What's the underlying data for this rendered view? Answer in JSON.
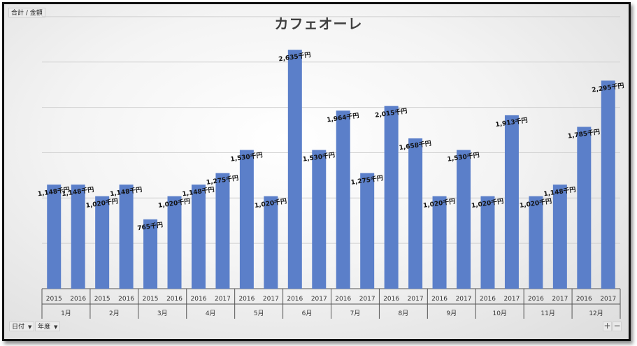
{
  "field_buttons": {
    "value_field": "合計 / 金額",
    "axis_field_1": "日付",
    "axis_field_2": "年度"
  },
  "zoom_buttons": {
    "expand": "+",
    "collapse": "−"
  },
  "colors": {
    "bar": "#5b7fc9",
    "grid": "#d0d0d0",
    "axis": "#555555"
  },
  "chart_data": {
    "type": "bar",
    "title": "カフェオーレ",
    "xlabel": "",
    "ylabel": "",
    "ylim": [
      0,
      3000
    ],
    "grid": true,
    "legend": "none",
    "value_unit_suffix": "千円",
    "groups": [
      {
        "label": "1月",
        "bars": [
          {
            "year": "2015",
            "value": 1148
          },
          {
            "year": "2016",
            "value": 1148
          }
        ]
      },
      {
        "label": "2月",
        "bars": [
          {
            "year": "2015",
            "value": 1020
          },
          {
            "year": "2016",
            "value": 1148
          }
        ]
      },
      {
        "label": "3月",
        "bars": [
          {
            "year": "2015",
            "value": 765
          },
          {
            "year": "2016",
            "value": 1020
          }
        ]
      },
      {
        "label": "4月",
        "bars": [
          {
            "year": "2016",
            "value": 1148
          },
          {
            "year": "2017",
            "value": 1275
          }
        ]
      },
      {
        "label": "5月",
        "bars": [
          {
            "year": "2016",
            "value": 1530
          },
          {
            "year": "2017",
            "value": 1020
          }
        ]
      },
      {
        "label": "6月",
        "bars": [
          {
            "year": "2016",
            "value": 2635
          },
          {
            "year": "2017",
            "value": 1530
          }
        ]
      },
      {
        "label": "7月",
        "bars": [
          {
            "year": "2016",
            "value": 1964
          },
          {
            "year": "2017",
            "value": 1275
          }
        ]
      },
      {
        "label": "8月",
        "bars": [
          {
            "year": "2016",
            "value": 2015
          },
          {
            "year": "2017",
            "value": 1658
          }
        ]
      },
      {
        "label": "9月",
        "bars": [
          {
            "year": "2016",
            "value": 1020
          },
          {
            "year": "2017",
            "value": 1530
          }
        ]
      },
      {
        "label": "10月",
        "bars": [
          {
            "year": "2016",
            "value": 1020
          },
          {
            "year": "2017",
            "value": 1913
          }
        ]
      },
      {
        "label": "11月",
        "bars": [
          {
            "year": "2016",
            "value": 1020
          },
          {
            "year": "2017",
            "value": 1148
          }
        ]
      },
      {
        "label": "12月",
        "bars": [
          {
            "year": "2016",
            "value": 1785
          },
          {
            "year": "2017",
            "value": 2295
          }
        ]
      }
    ]
  }
}
